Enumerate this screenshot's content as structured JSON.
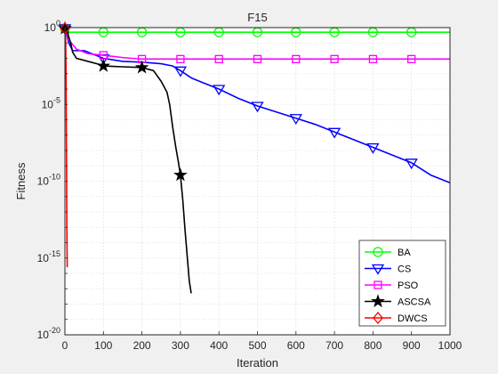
{
  "chart_data": {
    "type": "line",
    "title": "F15",
    "xlabel": "Iteration",
    "ylabel": "Fitness",
    "xlim": [
      0,
      1000
    ],
    "ylim_log10": [
      -20,
      0
    ],
    "yscale": "log",
    "grid": true,
    "legend_position": "bottom-right",
    "x_ticks": [
      "0",
      "100",
      "200",
      "300",
      "400",
      "500",
      "600",
      "700",
      "800",
      "900",
      "1000"
    ],
    "y_ticks": [
      {
        "base": "10",
        "exp": "0",
        "value": 0
      },
      {
        "base": "10",
        "exp": "-5",
        "value": -5
      },
      {
        "base": "10",
        "exp": "-10",
        "value": -10
      },
      {
        "base": "10",
        "exp": "-15",
        "value": -15
      },
      {
        "base": "10",
        "exp": "-20",
        "value": -20
      }
    ],
    "series": [
      {
        "name": "BA",
        "color": "#00ff00",
        "marker": "circle",
        "points": [
          [
            0,
            -0.05
          ],
          [
            5,
            -0.15
          ],
          [
            10,
            -0.3
          ],
          [
            1000,
            -0.3
          ]
        ],
        "marker_x": [
          0,
          100,
          200,
          300,
          400,
          500,
          600,
          700,
          800,
          900
        ]
      },
      {
        "name": "CS",
        "color": "#0000ff",
        "marker": "triangle-down",
        "points": [
          [
            0,
            -0.05
          ],
          [
            5,
            -0.5
          ],
          [
            10,
            -1.0
          ],
          [
            20,
            -1.5
          ],
          [
            50,
            -1.5
          ],
          [
            80,
            -1.8
          ],
          [
            100,
            -2.0
          ],
          [
            150,
            -2.2
          ],
          [
            200,
            -2.25
          ],
          [
            250,
            -2.35
          ],
          [
            280,
            -2.5
          ],
          [
            300,
            -2.8
          ],
          [
            330,
            -3.3
          ],
          [
            360,
            -3.6
          ],
          [
            400,
            -4.0
          ],
          [
            450,
            -4.6
          ],
          [
            500,
            -5.1
          ],
          [
            550,
            -5.5
          ],
          [
            600,
            -5.9
          ],
          [
            650,
            -6.3
          ],
          [
            700,
            -6.8
          ],
          [
            750,
            -7.3
          ],
          [
            800,
            -7.8
          ],
          [
            850,
            -8.3
          ],
          [
            900,
            -8.8
          ],
          [
            950,
            -9.6
          ],
          [
            1000,
            -10.1
          ]
        ],
        "marker_x": [
          0,
          100,
          300,
          400,
          500,
          600,
          700,
          800,
          900
        ]
      },
      {
        "name": "PSO",
        "color": "#ff00ff",
        "marker": "square",
        "points": [
          [
            0,
            -0.05
          ],
          [
            5,
            -0.4
          ],
          [
            10,
            -0.8
          ],
          [
            30,
            -1.4
          ],
          [
            60,
            -1.7
          ],
          [
            100,
            -1.8
          ],
          [
            150,
            -1.95
          ],
          [
            200,
            -2.05
          ],
          [
            1000,
            -2.05
          ]
        ],
        "marker_x": [
          100,
          200,
          300,
          400,
          500,
          600,
          700,
          800,
          900
        ]
      },
      {
        "name": "ASCSA",
        "color": "#000000",
        "marker": "pentagram",
        "points": [
          [
            0,
            -0.05
          ],
          [
            5,
            -0.2
          ],
          [
            10,
            -0.6
          ],
          [
            15,
            -1.0
          ],
          [
            20,
            -1.6
          ],
          [
            30,
            -2.0
          ],
          [
            60,
            -2.2
          ],
          [
            90,
            -2.4
          ],
          [
            100,
            -2.5
          ],
          [
            150,
            -2.55
          ],
          [
            200,
            -2.6
          ],
          [
            230,
            -2.8
          ],
          [
            250,
            -3.5
          ],
          [
            265,
            -4.2
          ],
          [
            272,
            -5.0
          ],
          [
            280,
            -6.5
          ],
          [
            288,
            -7.8
          ],
          [
            295,
            -8.8
          ],
          [
            300,
            -9.6
          ],
          [
            306,
            -11.2
          ],
          [
            312,
            -13.2
          ],
          [
            318,
            -15.0
          ],
          [
            323,
            -16.5
          ],
          [
            328,
            -17.3
          ]
        ],
        "marker_x": [
          0,
          100,
          200,
          300
        ]
      },
      {
        "name": "DWCS",
        "color": "#ff0000",
        "marker": "diamond",
        "points": [
          [
            0,
            -0.05
          ],
          [
            1,
            -0.4
          ],
          [
            2,
            -1.0
          ],
          [
            3,
            -3.0
          ],
          [
            4,
            -8.0
          ],
          [
            5,
            -13.0
          ],
          [
            6,
            -15.6
          ]
        ],
        "marker_x": [
          0
        ]
      }
    ]
  }
}
